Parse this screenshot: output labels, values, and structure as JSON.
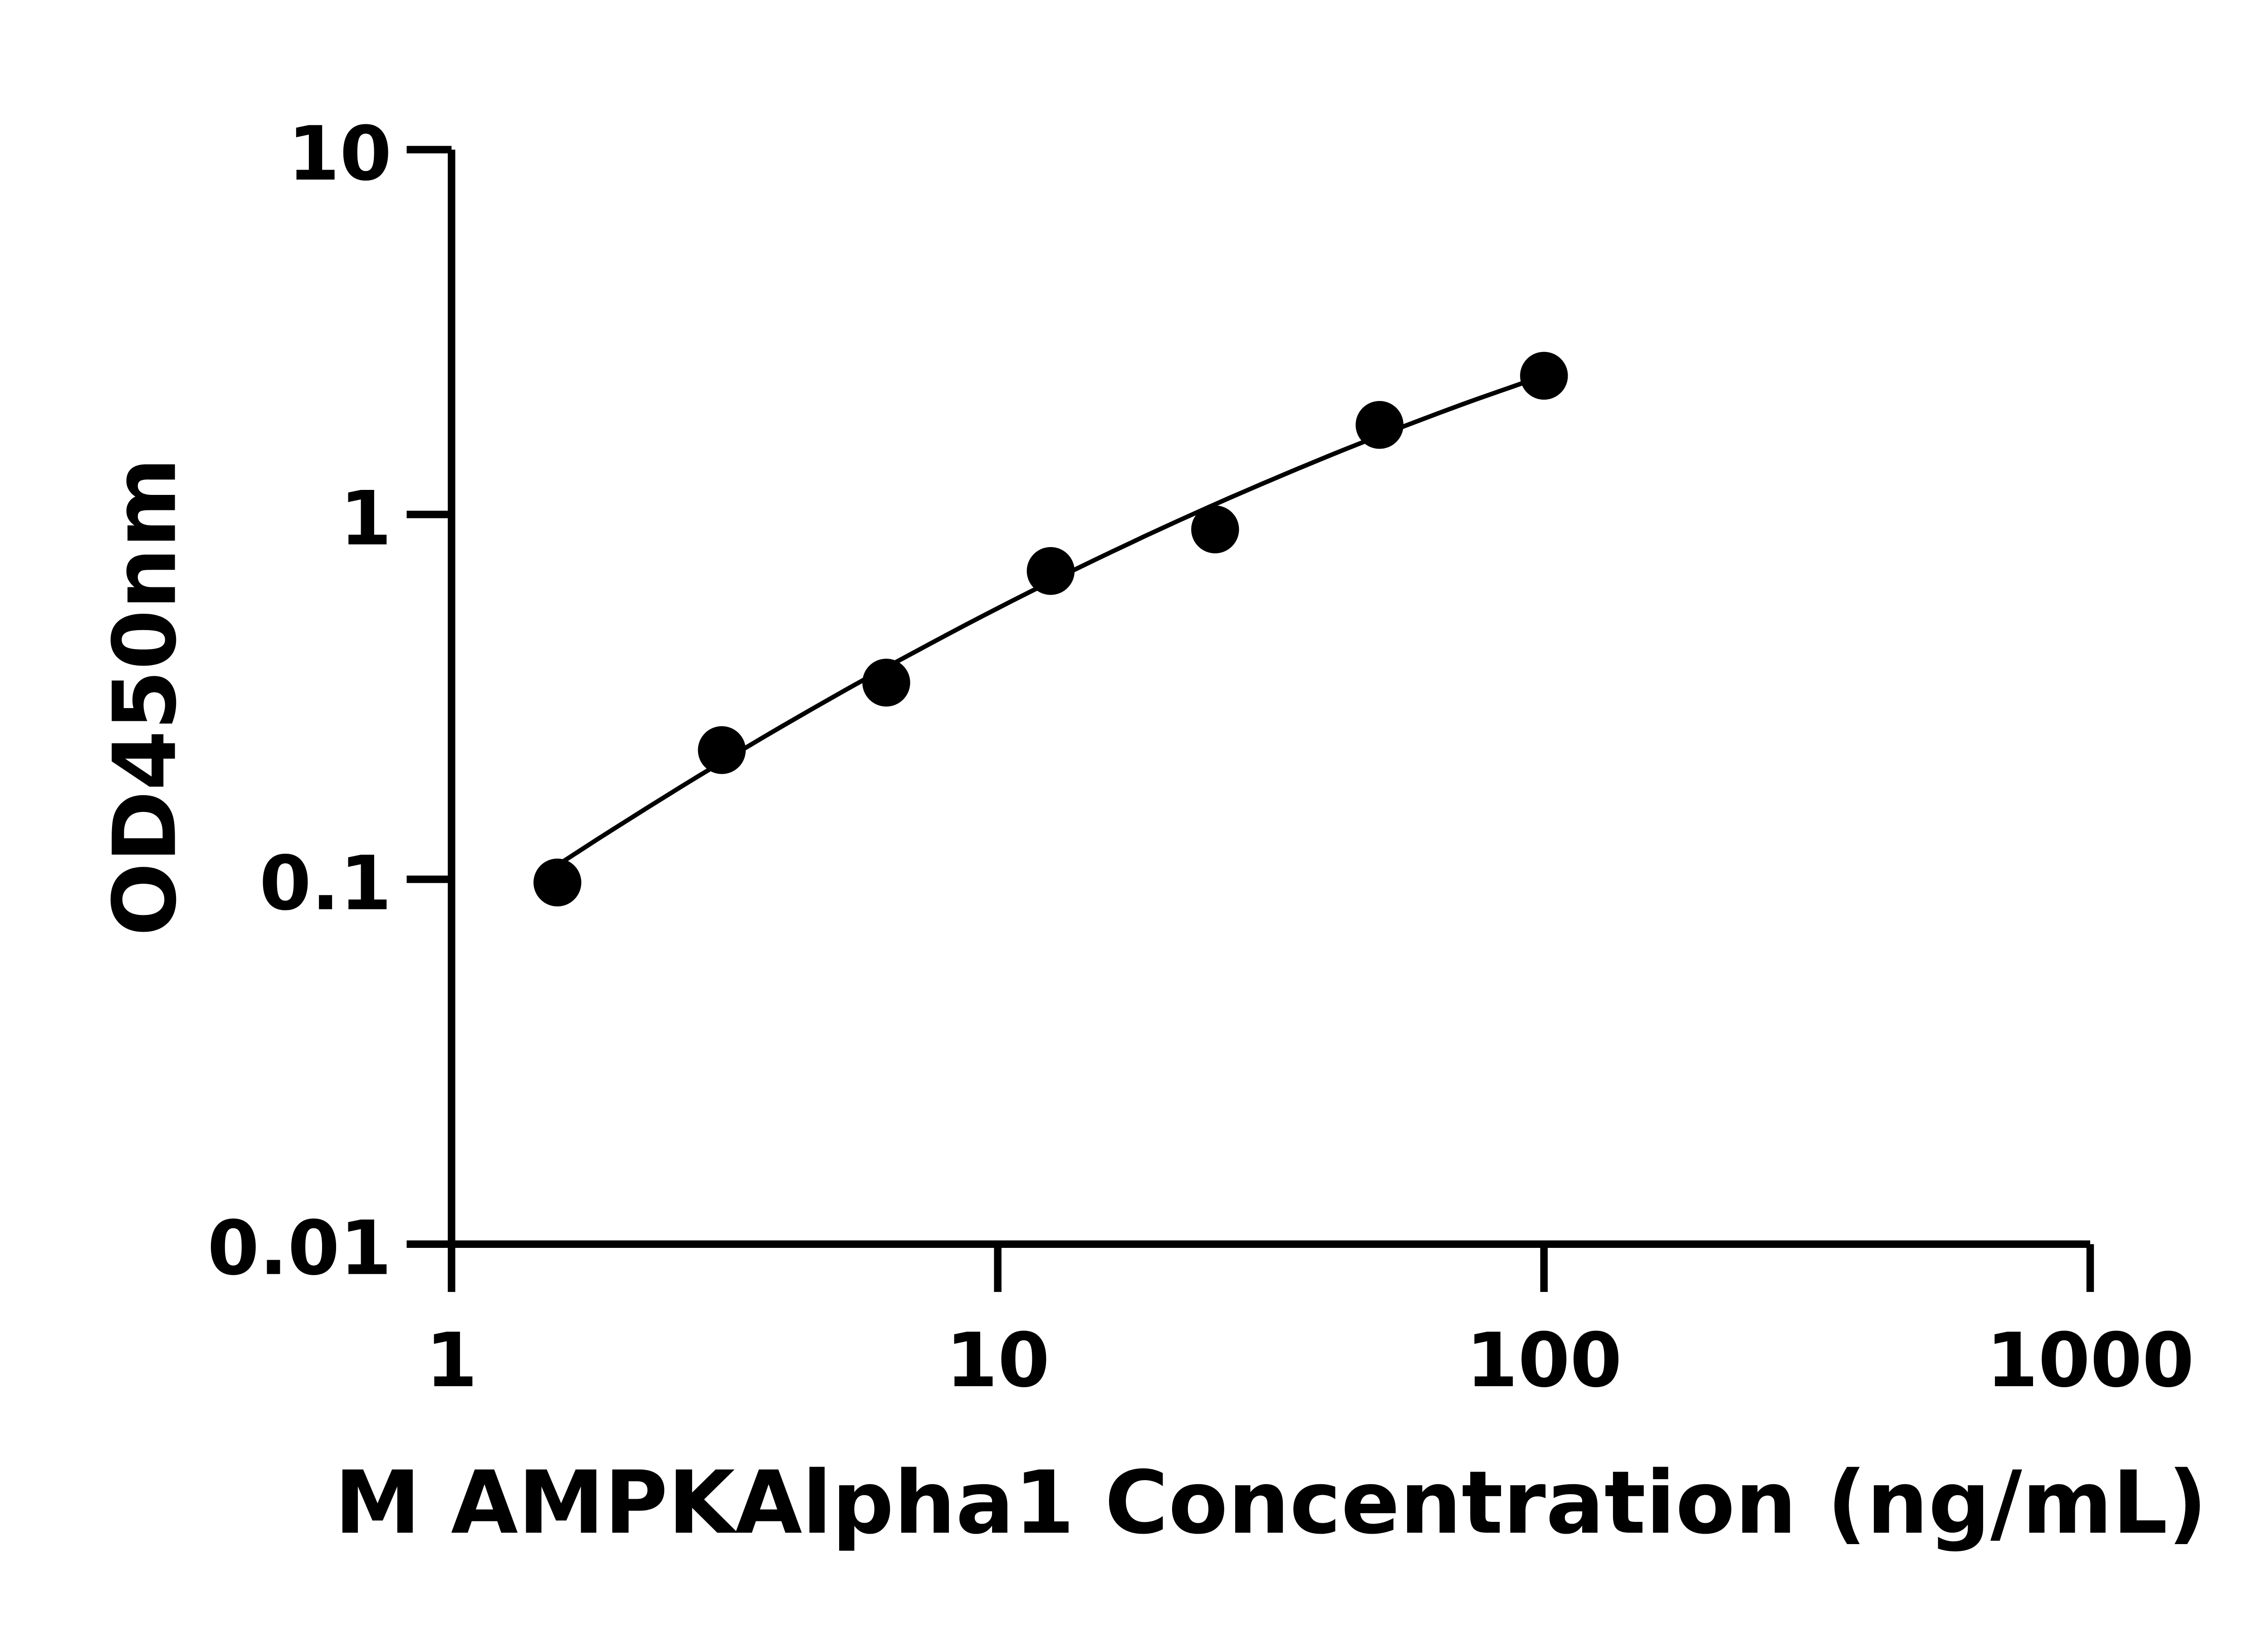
{
  "chart_data": {
    "type": "scatter",
    "title": "",
    "xlabel": "M AMPKAlpha1 Concentration (ng/mL)",
    "ylabel": "OD450nm",
    "xscale": "log",
    "yscale": "log",
    "xlim": [
      1,
      1000
    ],
    "ylim": [
      0.01,
      10
    ],
    "xticks": [
      "1",
      "10",
      "100",
      "1000"
    ],
    "yticks": [
      "0.01",
      "0.1",
      "1",
      "10"
    ],
    "grid": false,
    "legend": "none",
    "marker_color": "#000000",
    "series": [
      {
        "x": [
          1.5625,
          3.125,
          6.25,
          12.5,
          25,
          50,
          100
        ],
        "y": [
          0.098,
          0.226,
          0.346,
          0.7,
          0.91,
          1.76,
          2.4
        ]
      }
    ],
    "fit_curve": {
      "x": [
        1.5,
        12.5,
        100
      ],
      "y": [
        0.105,
        0.655,
        2.4
      ]
    }
  }
}
